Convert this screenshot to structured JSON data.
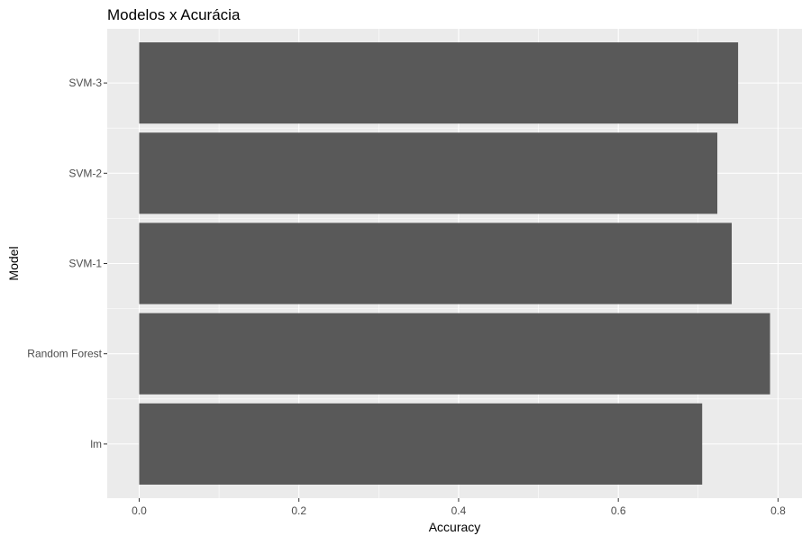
{
  "chart_data": {
    "type": "bar",
    "orientation": "horizontal",
    "title": "Modelos x Acurácia",
    "xlabel": "Accuracy",
    "ylabel": "Model",
    "categories": [
      "lm",
      "Random Forest",
      "SVM-1",
      "SVM-2",
      "SVM-3"
    ],
    "values": [
      0.705,
      0.79,
      0.742,
      0.724,
      0.75
    ],
    "xlim": [
      -0.04,
      0.83
    ],
    "xticks": [
      0.0,
      0.2,
      0.4,
      0.6,
      0.8
    ],
    "xtick_labels": [
      "0.0",
      "0.2",
      "0.4",
      "0.6",
      "0.8"
    ],
    "grid": true,
    "legend": "none",
    "colors": {
      "bar": "#595959",
      "panel": "#ebebeb",
      "grid": "#ffffff"
    }
  }
}
